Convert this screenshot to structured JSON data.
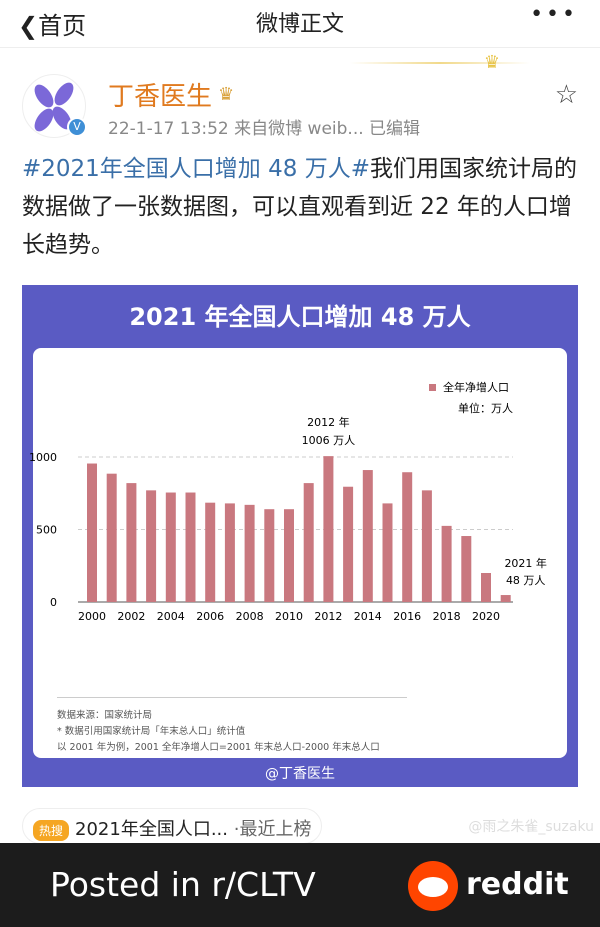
{
  "nav": {
    "back_label": "首页",
    "title": "微博正文",
    "more_icon": "more-dots-icon"
  },
  "post": {
    "author": "丁香医生",
    "meta": "22-1-17 13:52  来自微博 weib...  已编辑",
    "hashtag": "#2021年全国人口增加 48 万人#",
    "text": "我们用国家统计局的数据做了一张数据图，可以直观看到近 22 年的人口增长趋势。"
  },
  "image": {
    "title": "2021 年全国人口增加 48 万人",
    "notes": [
      "数据来源：国家统计局",
      "* 数据引用国家统计局「年末总人口」统计值",
      "以 2001 年为例，2001 全年净增人口=2001 年末总人口-2000 年末总人口"
    ],
    "watermark": "@丁香医生"
  },
  "chart_data": {
    "type": "bar",
    "legend": "全年净增人口",
    "unit": "单位：万人",
    "categories": [
      "2000",
      "2001",
      "2002",
      "2003",
      "2004",
      "2005",
      "2006",
      "2007",
      "2008",
      "2009",
      "2010",
      "2011",
      "2012",
      "2013",
      "2014",
      "2015",
      "2016",
      "2017",
      "2018",
      "2019",
      "2020",
      "2021"
    ],
    "x_tick_labels": [
      "2000",
      "2002",
      "2004",
      "2006",
      "2008",
      "2010",
      "2012",
      "2014",
      "2016",
      "2018",
      "2020"
    ],
    "values": [
      955,
      885,
      820,
      770,
      755,
      755,
      685,
      680,
      670,
      640,
      640,
      820,
      1006,
      795,
      910,
      680,
      895,
      770,
      525,
      455,
      200,
      48
    ],
    "ylim": [
      0,
      1000
    ],
    "y_ticks": [
      "0",
      "500",
      "1000"
    ],
    "annotations": [
      {
        "year": "2012",
        "line1": "2012 年",
        "line2": "1006 万人"
      },
      {
        "year": "2021",
        "line1": "2021 年",
        "line2": "48 万人"
      }
    ],
    "bar_color": "#c9787f",
    "grid": "dashed horizontal"
  },
  "hot_search": {
    "badge": "热搜",
    "text": "2021年全国人口...",
    "status": "·最近上榜"
  },
  "watermark2": "@雨之朱雀_suzaku",
  "footer": {
    "posted": "Posted in r/CLTV",
    "brand": "reddit"
  },
  "colors": {
    "accent": "#3a6fa8",
    "username": "#e07a1f",
    "image_bg": "#5a5bc3",
    "reddit": "#ff4500"
  }
}
